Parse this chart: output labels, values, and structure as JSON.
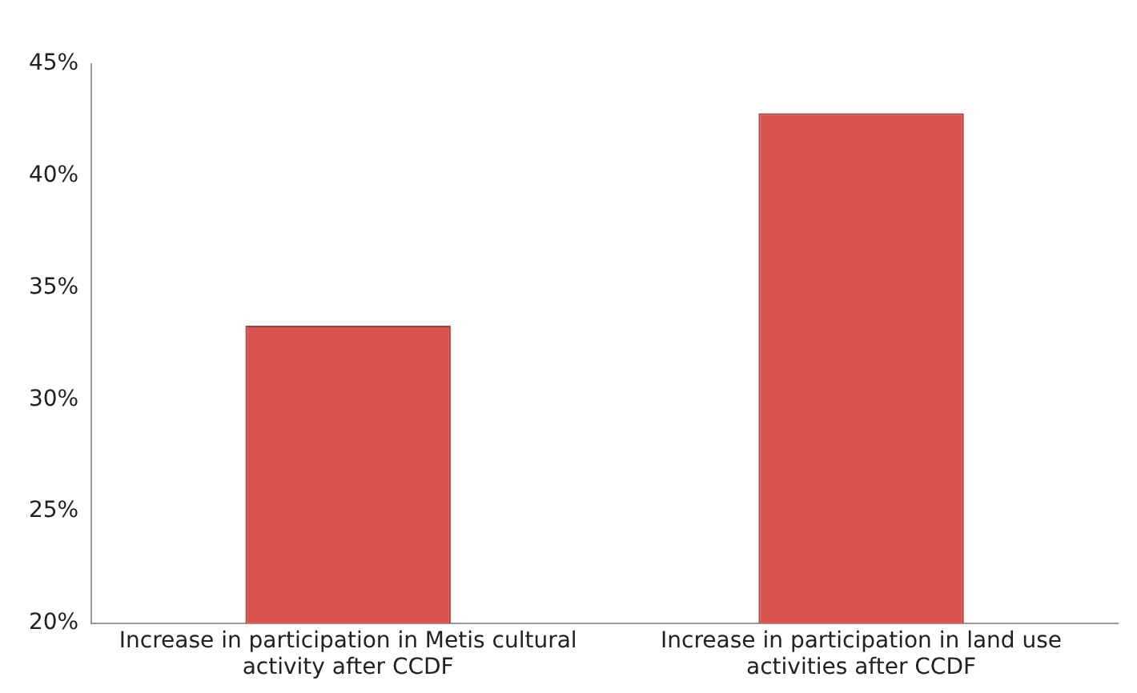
{
  "chart_data": {
    "type": "bar",
    "categories": [
      "Increase in participation in Metis cultural activity after CCDF",
      "Increase in participation in land use activities after CCDF"
    ],
    "values": [
      33.3,
      42.8
    ],
    "color": "#d9534f",
    "ylim": [
      20,
      45
    ],
    "yticks": [
      {
        "value": 20,
        "label": "20%"
      },
      {
        "value": 25,
        "label": "25%"
      },
      {
        "value": 30,
        "label": "30%"
      },
      {
        "value": 35,
        "label": "35%"
      },
      {
        "value": 40,
        "label": "40%"
      },
      {
        "value": 45,
        "label": "45%"
      }
    ],
    "grid": false
  }
}
